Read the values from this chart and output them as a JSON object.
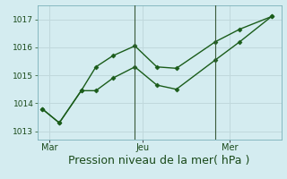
{
  "xlabel": "Pression niveau de la mer( hPa )",
  "xlabel_fontsize": 9,
  "bg_color": "#d4ecf0",
  "grid_color": "#c0d8dc",
  "line_color": "#1a5c1a",
  "ylim": [
    1012.7,
    1017.5
  ],
  "yticks": [
    1013,
    1014,
    1015,
    1016,
    1017
  ],
  "ytick_fontsize": 6.5,
  "xtick_labels": [
    "Mar",
    "Jeu",
    "Mer"
  ],
  "xtick_fontsize": 7,
  "vline_x": [
    0.4,
    0.73
  ],
  "series1_x": [
    0.02,
    0.09,
    0.18,
    0.24,
    0.31,
    0.4,
    0.49,
    0.57,
    0.73,
    0.83,
    0.96
  ],
  "series1_y": [
    1013.8,
    1013.3,
    1014.45,
    1015.3,
    1015.7,
    1016.05,
    1015.3,
    1015.25,
    1016.2,
    1016.65,
    1017.1
  ],
  "series2_x": [
    0.02,
    0.09,
    0.18,
    0.24,
    0.31,
    0.4,
    0.49,
    0.57,
    0.73,
    0.83,
    0.96
  ],
  "series2_y": [
    1013.8,
    1013.3,
    1014.45,
    1014.45,
    1014.9,
    1015.3,
    1014.65,
    1014.5,
    1015.55,
    1016.2,
    1017.1
  ],
  "xtick_positions": [
    0.05,
    0.43,
    0.79
  ],
  "marker": "D",
  "markersize": 2.5,
  "linewidth": 1.0
}
